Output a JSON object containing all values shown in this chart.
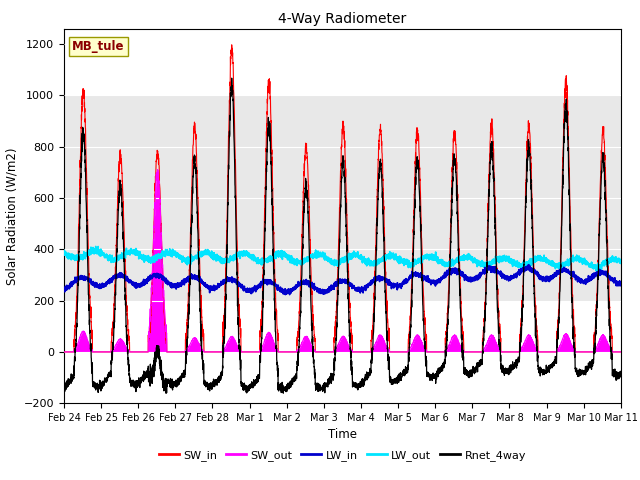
{
  "title": "4-Way Radiometer",
  "xlabel": "Time",
  "ylabel": "Solar Radiation (W/m2)",
  "ylim": [
    -200,
    1260
  ],
  "yticks": [
    -200,
    0,
    200,
    400,
    600,
    800,
    1000,
    1200
  ],
  "station_label": "MB_tule",
  "background_color": "#ffffff",
  "plot_bg_color": "#ffffff",
  "shaded_region_color": "#e8e8e8",
  "shaded_region": [
    200,
    1000
  ],
  "series": {
    "SW_in": {
      "color": "#ff0000",
      "lw": 0.8,
      "zorder": 3
    },
    "SW_out": {
      "color": "#ff00ff",
      "lw": 0.8,
      "zorder": 4
    },
    "LW_in": {
      "color": "#0000cc",
      "lw": 1.2,
      "zorder": 5
    },
    "LW_out": {
      "color": "#00e5ff",
      "lw": 1.2,
      "zorder": 5
    },
    "Rnet_4way": {
      "color": "#000000",
      "lw": 0.9,
      "zorder": 6
    }
  },
  "x_tick_labels": [
    "Feb 24",
    "Feb 25",
    "Feb 26",
    "Feb 27",
    "Feb 28",
    "Mar 1",
    "Mar 2",
    "Mar 3",
    "Mar 4",
    "Mar 5",
    "Mar 6",
    "Mar 7",
    "Mar 8",
    "Mar 9",
    "Mar 10",
    "Mar 11"
  ],
  "n_days": 15,
  "pts_per_day": 288,
  "legend_entries": [
    "SW_in",
    "SW_out",
    "LW_in",
    "LW_out",
    "Rnet_4way"
  ],
  "legend_colors": [
    "#ff0000",
    "#ff00ff",
    "#0000cc",
    "#00e5ff",
    "#000000"
  ]
}
